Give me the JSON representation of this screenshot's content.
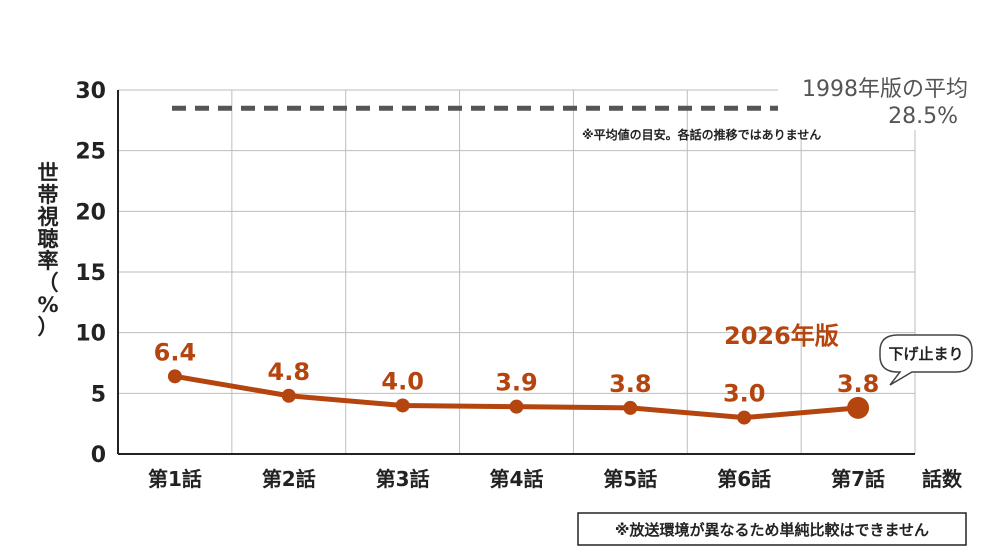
{
  "chart_data": {
    "type": "line",
    "categories": [
      "第1話",
      "第2話",
      "第3話",
      "第4話",
      "第5話",
      "第6話",
      "第7話"
    ],
    "series": [
      {
        "name": "2026年版",
        "values": [
          6.4,
          4.8,
          4.0,
          3.9,
          3.8,
          3.0,
          3.8
        ],
        "color": "#b5450f"
      }
    ],
    "data_labels": [
      "6.4",
      "4.8",
      "4.0",
      "3.9",
      "3.8",
      "3.0",
      "3.8"
    ],
    "reference_line": {
      "label": "1998年版の平均",
      "value_label": "28.5%",
      "value": 28.5,
      "note": "※平均値の目安。各話の推移ではありません",
      "color": "#555555"
    },
    "ylabel_chars": [
      "世",
      "帯",
      "視",
      "聴",
      "率",
      "（",
      "%",
      "）"
    ],
    "xlabel": "話数",
    "ylim": [
      0,
      30
    ],
    "yticks": [
      0,
      5,
      10,
      15,
      20,
      25,
      30
    ],
    "grid": true,
    "callout": "下げ止まり",
    "footnote": "※放送環境が異なるため単純比較はできません"
  }
}
